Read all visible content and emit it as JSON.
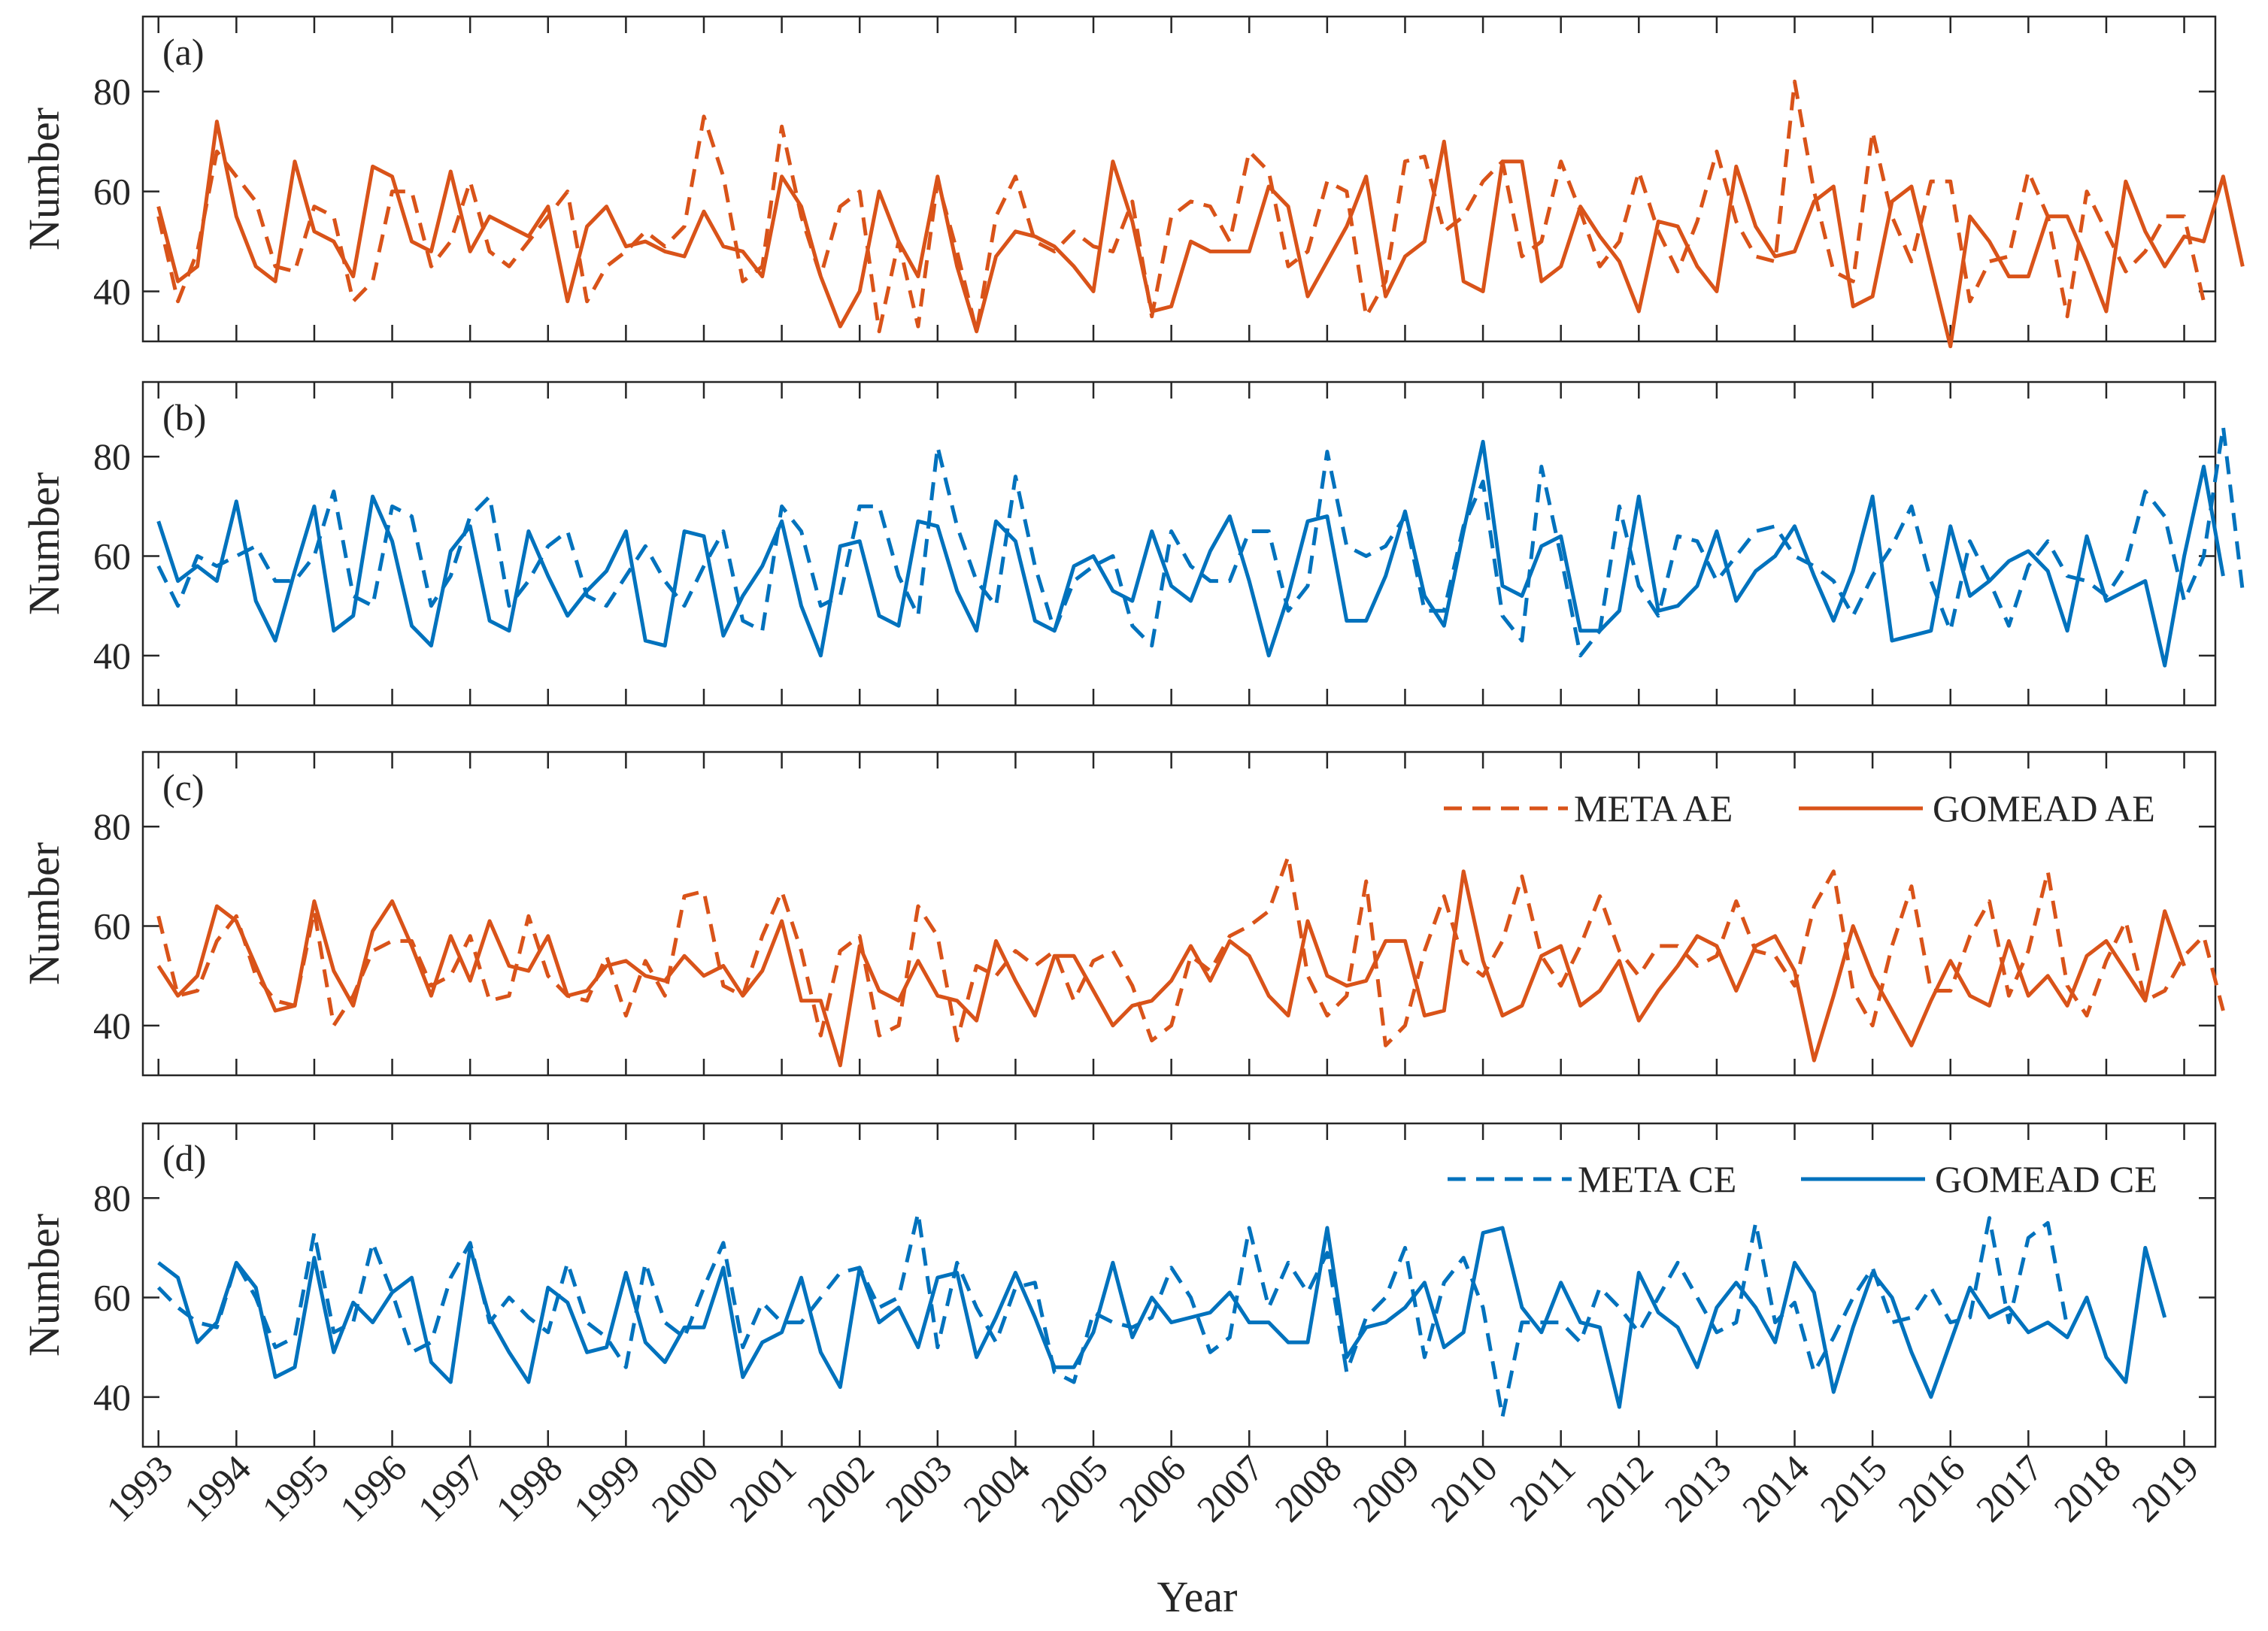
{
  "figure": {
    "xlabel": "Year",
    "ylabel": "Number",
    "colors": {
      "ae": "#D95319",
      "ce": "#0072BD"
    }
  },
  "chart_data": [
    {
      "type": "line",
      "panel": "(a)",
      "color": "ae",
      "xlabel": "Year",
      "ylabel": "Number",
      "ylim": [
        30,
        95
      ],
      "yticks": [
        40,
        60,
        80
      ],
      "xlim": [
        1992.8,
        2019.4
      ],
      "x_start": 1993.0,
      "x_step": 0.25,
      "legend": null,
      "series": [
        {
          "name": "META AE",
          "style": "dashed",
          "values": [
            55,
            38,
            48,
            68,
            63,
            58,
            45,
            44,
            57,
            55,
            38,
            42,
            60,
            60,
            45,
            50,
            62,
            48,
            45,
            50,
            55,
            60,
            38,
            45,
            48,
            52,
            49,
            53,
            75,
            63,
            42,
            45,
            73,
            55,
            43,
            57,
            60,
            32,
            50,
            33,
            62,
            48,
            32,
            55,
            63,
            50,
            48,
            52,
            49,
            48,
            58,
            35,
            55,
            58,
            57,
            50,
            68,
            64,
            45,
            48,
            62,
            60,
            35,
            42,
            66,
            67,
            52,
            55,
            62,
            66,
            47,
            50,
            66,
            56,
            45,
            50,
            64,
            52,
            44,
            54,
            68,
            54,
            47,
            46,
            82,
            60,
            44,
            42,
            72,
            55,
            46,
            62,
            62,
            38,
            46,
            47,
            64,
            55,
            35,
            60,
            52,
            44,
            48,
            55,
            55,
            38
          ]
        },
        {
          "name": "GOMEAD AE",
          "style": "solid",
          "values": [
            57,
            42,
            45,
            74,
            55,
            45,
            42,
            66,
            52,
            50,
            43,
            65,
            63,
            50,
            48,
            64,
            48,
            55,
            53,
            51,
            57,
            38,
            53,
            57,
            49,
            50,
            48,
            47,
            56,
            49,
            48,
            43,
            63,
            57,
            43,
            33,
            40,
            60,
            50,
            43,
            63,
            45,
            32,
            47,
            52,
            51,
            49,
            45,
            40,
            66,
            54,
            36,
            37,
            50,
            48,
            48,
            48,
            61,
            57,
            39,
            46,
            53,
            63,
            39,
            47,
            50,
            70,
            42,
            40,
            66,
            66,
            42,
            45,
            57,
            51,
            46,
            36,
            54,
            53,
            45,
            40,
            65,
            53,
            47,
            48,
            58,
            61,
            37,
            39,
            58,
            61,
            45,
            29,
            55,
            50,
            43,
            43,
            55,
            55,
            46,
            36,
            62,
            52,
            45,
            51,
            50,
            63,
            45
          ]
        }
      ]
    },
    {
      "type": "line",
      "panel": "(b)",
      "color": "ce",
      "xlabel": "Year",
      "ylabel": "Number",
      "ylim": [
        30,
        95
      ],
      "yticks": [
        40,
        60,
        80
      ],
      "xlim": [
        1992.8,
        2019.4
      ],
      "x_start": 1993.0,
      "x_step": 0.25,
      "legend": null,
      "series": [
        {
          "name": "META CE",
          "style": "dashed",
          "values": [
            58,
            50,
            60,
            58,
            60,
            62,
            55,
            55,
            60,
            73,
            52,
            50,
            70,
            68,
            50,
            56,
            68,
            72,
            50,
            55,
            62,
            65,
            52,
            50,
            56,
            62,
            55,
            50,
            58,
            65,
            47,
            45,
            70,
            65,
            50,
            52,
            70,
            70,
            56,
            48,
            82,
            66,
            55,
            50,
            76,
            58,
            45,
            55,
            58,
            60,
            46,
            42,
            65,
            58,
            55,
            55,
            65,
            65,
            49,
            54,
            81,
            62,
            60,
            62,
            68,
            49,
            49,
            66,
            75,
            48,
            43,
            78,
            60,
            40,
            45,
            70,
            54,
            48,
            64,
            63,
            55,
            60,
            65,
            66,
            60,
            58,
            55,
            48,
            56,
            62,
            70,
            55,
            45,
            63,
            55,
            46,
            58,
            63,
            56,
            55,
            52,
            58,
            73,
            68,
            51,
            60,
            86,
            53
          ]
        },
        {
          "name": "GOMEAD CE",
          "style": "solid",
          "values": [
            67,
            55,
            58,
            55,
            71,
            51,
            43,
            57,
            70,
            45,
            48,
            72,
            63,
            46,
            42,
            61,
            66,
            47,
            45,
            65,
            56,
            48,
            53,
            57,
            65,
            43,
            42,
            65,
            64,
            44,
            52,
            58,
            67,
            50,
            40,
            62,
            63,
            48,
            46,
            67,
            66,
            53,
            45,
            67,
            63,
            47,
            45,
            58,
            60,
            53,
            51,
            65,
            54,
            51,
            61,
            68,
            55,
            40,
            52,
            67,
            68,
            47,
            47,
            56,
            69,
            52,
            46,
            65,
            83,
            54,
            52,
            62,
            64,
            45,
            45,
            49,
            72,
            49,
            50,
            54,
            65,
            51,
            57,
            60,
            66,
            56,
            47,
            57,
            72,
            43,
            44,
            45,
            66,
            52,
            55,
            59,
            61,
            57,
            45,
            64,
            51,
            53,
            55,
            38,
            60,
            78,
            56
          ]
        }
      ]
    },
    {
      "type": "line",
      "panel": "(c)",
      "color": "ae",
      "xlabel": "Year",
      "ylabel": "Number",
      "ylim": [
        30,
        95
      ],
      "yticks": [
        40,
        60,
        80
      ],
      "xlim": [
        1992.8,
        2019.4
      ],
      "x_start": 1993.0,
      "x_step": 0.25,
      "legend": {
        "position": "top-right",
        "entries": [
          "META AE",
          "GOMEAD AE"
        ]
      },
      "series": [
        {
          "name": "META AE",
          "style": "dashed",
          "values": [
            62,
            46,
            47,
            57,
            62,
            50,
            45,
            44,
            63,
            40,
            46,
            55,
            57,
            57,
            48,
            50,
            58,
            45,
            46,
            62,
            50,
            46,
            45,
            54,
            42,
            53,
            46,
            66,
            67,
            48,
            46,
            58,
            67,
            55,
            38,
            55,
            58,
            38,
            40,
            64,
            58,
            37,
            52,
            50,
            55,
            52,
            55,
            45,
            53,
            55,
            48,
            37,
            40,
            54,
            51,
            58,
            60,
            63,
            74,
            50,
            42,
            46,
            69,
            36,
            40,
            55,
            66,
            53,
            50,
            57,
            70,
            54,
            48,
            56,
            66,
            55,
            50,
            56,
            56,
            52,
            54,
            65,
            55,
            54,
            48,
            64,
            71,
            47,
            40,
            56,
            68,
            47,
            47,
            58,
            65,
            46,
            55,
            71,
            48,
            42,
            53,
            61,
            45,
            47,
            54,
            58,
            43
          ]
        },
        {
          "name": "GOMEAD AE",
          "style": "solid",
          "values": [
            52,
            46,
            50,
            64,
            61,
            52,
            43,
            44,
            65,
            51,
            44,
            59,
            65,
            56,
            46,
            58,
            49,
            61,
            52,
            51,
            58,
            46,
            47,
            52,
            53,
            50,
            49,
            54,
            50,
            52,
            46,
            51,
            61,
            45,
            45,
            32,
            56,
            47,
            45,
            53,
            46,
            45,
            41,
            57,
            49,
            42,
            54,
            54,
            47,
            40,
            44,
            45,
            49,
            56,
            49,
            57,
            54,
            46,
            42,
            61,
            50,
            48,
            49,
            57,
            57,
            42,
            43,
            71,
            53,
            42,
            44,
            54,
            56,
            44,
            47,
            53,
            41,
            47,
            52,
            58,
            56,
            47,
            56,
            58,
            51,
            33,
            46,
            60,
            50,
            43,
            36,
            45,
            53,
            46,
            44,
            57,
            46,
            50,
            44,
            54,
            57,
            51,
            45,
            63,
            52
          ]
        }
      ]
    },
    {
      "type": "line",
      "panel": "(d)",
      "color": "ce",
      "xlabel": "Year",
      "ylabel": "Number",
      "ylim": [
        30,
        95
      ],
      "yticks": [
        40,
        60,
        80
      ],
      "xlim": [
        1992.8,
        2019.4
      ],
      "x_start": 1993.0,
      "x_step": 0.25,
      "legend": {
        "position": "top-right",
        "entries": [
          "META CE",
          "GOMEAD CE"
        ]
      },
      "series": [
        {
          "name": "META CE",
          "style": "dashed",
          "values": [
            62,
            58,
            55,
            54,
            67,
            60,
            50,
            52,
            73,
            53,
            55,
            71,
            61,
            49,
            51,
            64,
            71,
            55,
            60,
            56,
            53,
            67,
            55,
            52,
            46,
            67,
            55,
            52,
            62,
            71,
            50,
            59,
            55,
            55,
            60,
            65,
            66,
            58,
            60,
            77,
            50,
            67,
            58,
            51,
            62,
            63,
            45,
            43,
            57,
            55,
            54,
            56,
            66,
            60,
            49,
            52,
            74,
            58,
            67,
            61,
            69,
            45,
            56,
            60,
            70,
            48,
            63,
            68,
            58,
            36,
            55,
            55,
            55,
            51,
            62,
            58,
            53,
            60,
            67,
            60,
            53,
            55,
            75,
            55,
            59,
            45,
            52,
            60,
            66,
            55,
            56,
            62,
            55,
            56,
            76,
            55,
            72,
            75,
            54
          ]
        },
        {
          "name": "GOMEAD CE",
          "style": "solid",
          "values": [
            67,
            64,
            51,
            55,
            67,
            62,
            44,
            46,
            68,
            49,
            59,
            55,
            61,
            64,
            47,
            43,
            70,
            56,
            49,
            43,
            62,
            59,
            49,
            50,
            65,
            51,
            47,
            54,
            54,
            66,
            44,
            51,
            53,
            64,
            49,
            42,
            66,
            55,
            58,
            50,
            64,
            65,
            48,
            56,
            65,
            56,
            46,
            46,
            53,
            67,
            52,
            60,
            55,
            56,
            57,
            61,
            55,
            55,
            51,
            51,
            74,
            48,
            54,
            55,
            58,
            63,
            50,
            53,
            73,
            74,
            58,
            53,
            63,
            55,
            54,
            38,
            65,
            57,
            54,
            46,
            58,
            63,
            58,
            51,
            67,
            61,
            41,
            54,
            65,
            60,
            49,
            40,
            51,
            62,
            56,
            58,
            53,
            55,
            52,
            60,
            48,
            43,
            70,
            56
          ]
        }
      ]
    }
  ]
}
